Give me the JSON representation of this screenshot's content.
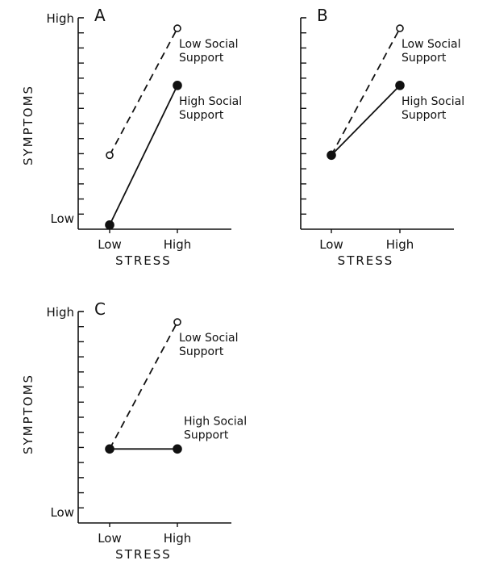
{
  "chart_data": [
    {
      "type": "line",
      "panel": "A",
      "ylabel": "SYMPTOMS",
      "xlabel": "STRESS",
      "categories": [
        "Low",
        "High"
      ],
      "y_tick_labels": {
        "top": "High",
        "bottom": "Low"
      },
      "ylim": [
        0,
        10
      ],
      "series": [
        {
          "name": "Low Social Support",
          "values": [
            3.5,
            9.5
          ],
          "style": "dashed",
          "marker": "open-circle"
        },
        {
          "name": "High Social Support",
          "values": [
            0.2,
            6.8
          ],
          "style": "solid",
          "marker": "filled-circle"
        }
      ]
    },
    {
      "type": "line",
      "panel": "B",
      "ylabel": "",
      "xlabel": "STRESS",
      "categories": [
        "Low",
        "High"
      ],
      "y_tick_labels": {
        "top": "",
        "bottom": ""
      },
      "ylim": [
        0,
        10
      ],
      "series": [
        {
          "name": "Low Social Support",
          "values": [
            3.5,
            9.5
          ],
          "style": "dashed",
          "marker": "open-circle"
        },
        {
          "name": "High Social Support",
          "values": [
            3.5,
            6.8
          ],
          "style": "solid",
          "marker": "filled-circle"
        }
      ]
    },
    {
      "type": "line",
      "panel": "C",
      "ylabel": "SYMPTOMS",
      "xlabel": "STRESS",
      "categories": [
        "Low",
        "High"
      ],
      "y_tick_labels": {
        "top": "High",
        "bottom": "Low"
      },
      "ylim": [
        0,
        10
      ],
      "series": [
        {
          "name": "Low Social Support",
          "values": [
            3.5,
            9.5
          ],
          "style": "dashed",
          "marker": "open-circle"
        },
        {
          "name": "High Social Support",
          "values": [
            3.5,
            3.5
          ],
          "style": "solid",
          "marker": "filled-circle"
        }
      ]
    }
  ],
  "style": {
    "ink_color": "#111111",
    "background": "#ffffff"
  }
}
